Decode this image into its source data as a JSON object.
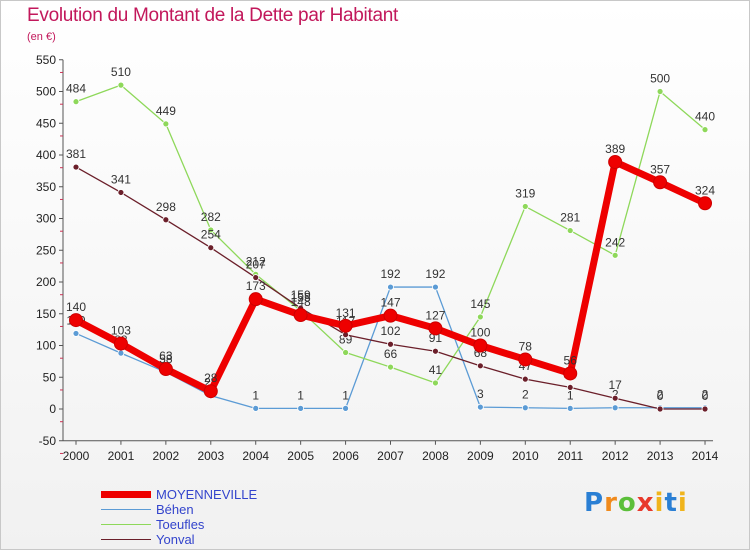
{
  "title": "Evolution du Montant de la Dette par Habitant",
  "subtitle": "(en €)",
  "logo_text": "Proxiti",
  "chart_data": {
    "type": "line",
    "title": "Evolution du Montant de la Dette par Habitant",
    "ylabel": "(en €)",
    "categories": [
      "2000",
      "2001",
      "2002",
      "2003",
      "2004",
      "2005",
      "2006",
      "2007",
      "2008",
      "2009",
      "2010",
      "2011",
      "2012",
      "2013",
      "2014"
    ],
    "ylim": [
      -50,
      550
    ],
    "yticks": [
      "-50",
      "0",
      "50",
      "100",
      "150",
      "200",
      "250",
      "300",
      "350",
      "400",
      "450",
      "500",
      "550"
    ],
    "grid": false,
    "legend_position": "bottom-left",
    "series": [
      {
        "name": "MOYENNEVILLE",
        "color": "#ee0000",
        "values": [
          140,
          103,
          63,
          28,
          173,
          148,
          131,
          147,
          127,
          100,
          78,
          56,
          389,
          357,
          324
        ]
      },
      {
        "name": "Béhen",
        "color": "#5b9bd5",
        "values": [
          119,
          88,
          58,
          21,
          1,
          1,
          1,
          192,
          192,
          3,
          2,
          1,
          2,
          2,
          2
        ]
      },
      {
        "name": "Toeufles",
        "color": "#8ed85a",
        "values": [
          484,
          510,
          449,
          282,
          212,
          155,
          89,
          66,
          41,
          145,
          319,
          281,
          242,
          500,
          440
        ]
      },
      {
        "name": "Yonval",
        "color": "#6b1f2a",
        "values": [
          381,
          341,
          298,
          254,
          207,
          159,
          117,
          102,
          91,
          68,
          47,
          34,
          17,
          0,
          0
        ]
      }
    ]
  }
}
